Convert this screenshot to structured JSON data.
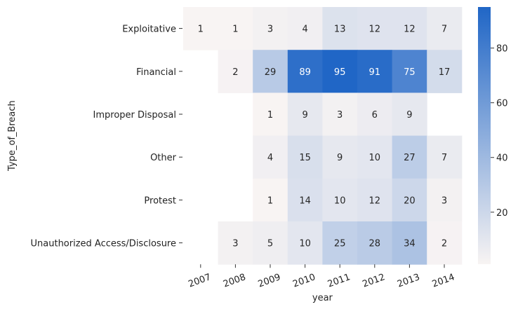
{
  "chart_data": {
    "type": "heatmap",
    "xlabel": "year",
    "ylabel": "Type_of_Breach",
    "x_categories": [
      "2007",
      "2008",
      "2009",
      "2010",
      "2011",
      "2012",
      "2013",
      "2014"
    ],
    "y_categories": [
      "Exploitative",
      "Financial",
      "Improper Disposal",
      "Other",
      "Protest",
      "Unauthorized Access/Disclosure"
    ],
    "values": [
      [
        1,
        1,
        3,
        4,
        13,
        12,
        12,
        7
      ],
      [
        null,
        2,
        29,
        89,
        95,
        91,
        75,
        17
      ],
      [
        null,
        null,
        1,
        9,
        3,
        6,
        9,
        null
      ],
      [
        null,
        null,
        4,
        15,
        9,
        10,
        27,
        7
      ],
      [
        null,
        null,
        1,
        14,
        10,
        12,
        20,
        3
      ],
      [
        null,
        3,
        5,
        10,
        25,
        28,
        34,
        2
      ]
    ],
    "color_range": [
      1,
      95
    ],
    "colorbar_ticks": [
      20,
      40,
      60,
      80
    ],
    "colormap": [
      "#f8f4f3",
      "#2066c6"
    ]
  }
}
